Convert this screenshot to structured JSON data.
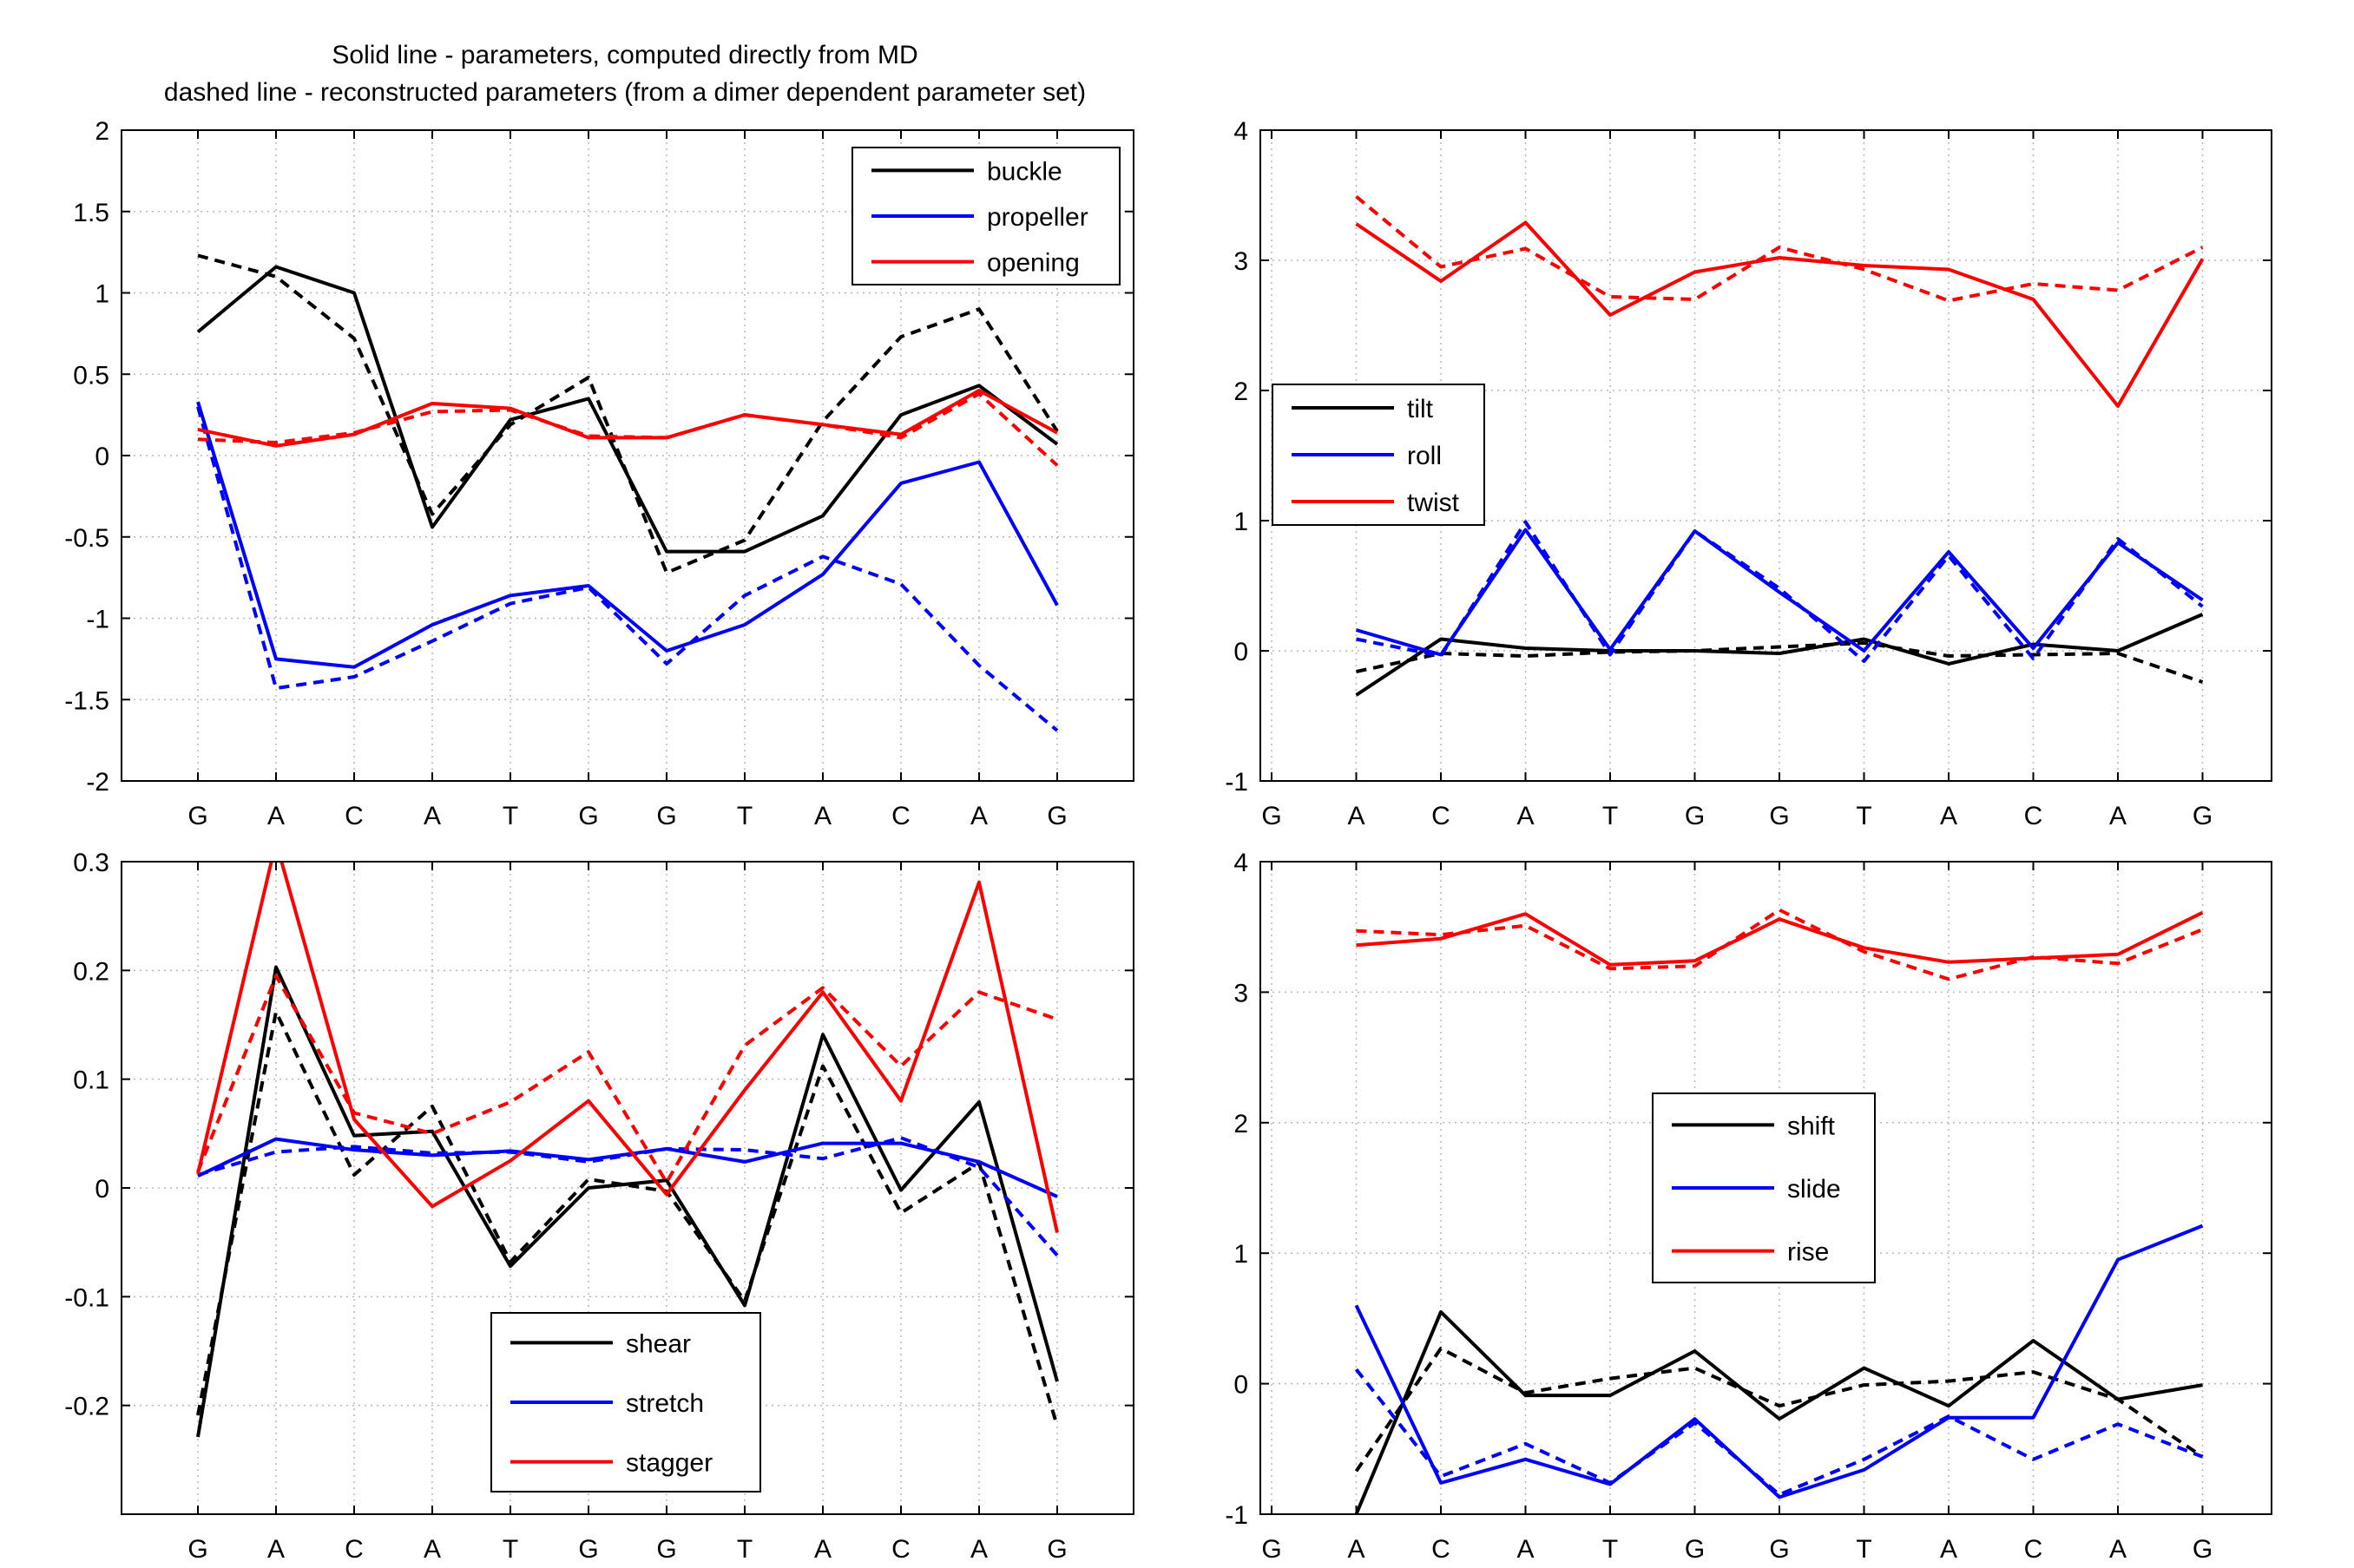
{
  "figure": {
    "title_line1": "Solid line - parameters, computed directly from MD",
    "title_line2": "dashed line - reconstructed parameters (from a dimer dependent parameter set)"
  },
  "colors": {
    "black": "#000000",
    "blue": "#0000ff",
    "red": "#ff0000"
  },
  "chart_data": [
    {
      "type": "line",
      "categories": [
        "G",
        "A",
        "C",
        "A",
        "T",
        "G",
        "G",
        "T",
        "A",
        "C",
        "A",
        "G"
      ],
      "ylim": [
        -2,
        2
      ],
      "yticks": [
        "-2",
        "-1.5",
        "-1",
        "-0.5",
        "0",
        "0.5",
        "1",
        "1.5",
        "2"
      ],
      "ytick_values": [
        -2,
        -1.5,
        -1,
        -0.5,
        0,
        0.5,
        1,
        1.5,
        2
      ],
      "grid": true,
      "legend_position": "top-right",
      "series": [
        {
          "name": "buckle",
          "color": "#000000",
          "solid": [
            0.76,
            1.16,
            1.0,
            -0.44,
            0.22,
            0.35,
            -0.59,
            -0.59,
            -0.37,
            0.25,
            0.43,
            0.07
          ],
          "dashed": [
            1.23,
            1.1,
            0.72,
            -0.36,
            0.19,
            0.48,
            -0.72,
            -0.52,
            0.21,
            0.73,
            0.9,
            0.15
          ]
        },
        {
          "name": "propeller",
          "color": "#0000ff",
          "solid": [
            0.33,
            -1.25,
            -1.3,
            -1.04,
            -0.86,
            -0.8,
            -1.2,
            -1.04,
            -0.73,
            -0.17,
            -0.04,
            -0.92
          ],
          "dashed": [
            0.3,
            -1.43,
            -1.36,
            -1.14,
            -0.91,
            -0.81,
            -1.28,
            -0.86,
            -0.62,
            -0.79,
            -1.29,
            -1.69
          ]
        },
        {
          "name": "opening",
          "color": "#ff0000",
          "solid": [
            0.16,
            0.06,
            0.13,
            0.32,
            0.29,
            0.11,
            0.11,
            0.25,
            0.19,
            0.13,
            0.4,
            0.14
          ],
          "dashed": [
            0.1,
            0.08,
            0.14,
            0.27,
            0.28,
            0.12,
            0.11,
            0.25,
            0.19,
            0.11,
            0.38,
            -0.06
          ]
        }
      ]
    },
    {
      "type": "line",
      "categories": [
        "G",
        "A",
        "C",
        "A",
        "T",
        "G",
        "G",
        "T",
        "A",
        "C",
        "A",
        "G"
      ],
      "ylim": [
        -1,
        4
      ],
      "yticks": [
        "-1",
        "0",
        "1",
        "2",
        "3",
        "4"
      ],
      "ytick_values": [
        -1,
        0,
        1,
        2,
        3,
        4
      ],
      "grid": true,
      "legend_position": "center-left",
      "series": [
        {
          "name": "tilt",
          "color": "#000000",
          "solid": [
            null,
            -0.34,
            0.09,
            0.02,
            0.0,
            0.0,
            -0.02,
            0.09,
            -0.1,
            0.05,
            0.0,
            0.28
          ],
          "dashed": [
            null,
            -0.16,
            -0.02,
            -0.04,
            -0.01,
            0.0,
            0.03,
            0.06,
            -0.04,
            -0.03,
            -0.02,
            -0.24
          ]
        },
        {
          "name": "roll",
          "color": "#0000ff",
          "solid": [
            null,
            0.16,
            -0.03,
            0.93,
            0.01,
            0.92,
            0.45,
            0.0,
            0.76,
            0.02,
            0.83,
            0.39
          ],
          "dashed": [
            null,
            0.09,
            -0.04,
            0.99,
            -0.03,
            0.92,
            0.48,
            -0.08,
            0.73,
            -0.06,
            0.86,
            0.34
          ]
        },
        {
          "name": "twist",
          "color": "#ff0000",
          "solid": [
            null,
            3.28,
            2.84,
            3.29,
            2.58,
            2.91,
            3.02,
            2.96,
            2.93,
            2.7,
            1.88,
            3.01
          ],
          "dashed": [
            null,
            3.49,
            2.95,
            3.09,
            2.72,
            2.7,
            3.1,
            2.93,
            2.69,
            2.82,
            2.77,
            3.1
          ]
        }
      ]
    },
    {
      "type": "line",
      "categories": [
        "G",
        "A",
        "C",
        "A",
        "T",
        "G",
        "G",
        "T",
        "A",
        "C",
        "A",
        "G"
      ],
      "ylim": [
        -0.3,
        0.3
      ],
      "yticks": [
        "-0.2",
        "-0.1",
        "0",
        "0.1",
        "0.2",
        "0.3"
      ],
      "ytick_values": [
        -0.2,
        -0.1,
        0,
        0.1,
        0.2,
        0.3
      ],
      "grid": true,
      "legend_position": "bottom-center",
      "series": [
        {
          "name": "shear",
          "color": "#000000",
          "solid": [
            -0.229,
            0.203,
            0.048,
            0.052,
            -0.072,
            0.0,
            0.007,
            -0.108,
            0.141,
            -0.002,
            0.079,
            -0.178
          ],
          "dashed": [
            -0.209,
            0.162,
            0.012,
            0.075,
            -0.068,
            0.008,
            -0.003,
            -0.104,
            0.112,
            -0.023,
            0.023,
            -0.219
          ]
        },
        {
          "name": "stretch",
          "color": "#0000ff",
          "solid": [
            0.011,
            0.045,
            0.035,
            0.03,
            0.034,
            0.026,
            0.036,
            0.024,
            0.041,
            0.041,
            0.024,
            -0.008
          ],
          "dashed": [
            0.012,
            0.033,
            0.038,
            0.032,
            0.033,
            0.024,
            0.036,
            0.035,
            0.027,
            0.046,
            0.019,
            -0.062
          ]
        },
        {
          "name": "stagger",
          "color": "#ff0000",
          "solid": [
            0.013,
            0.318,
            0.063,
            -0.017,
            0.025,
            0.08,
            -0.006,
            0.09,
            0.18,
            0.08,
            0.281,
            -0.041
          ],
          "dashed": [
            0.015,
            0.195,
            0.069,
            0.05,
            0.079,
            0.125,
            0.005,
            0.131,
            0.184,
            0.112,
            0.18,
            0.155
          ]
        }
      ]
    },
    {
      "type": "line",
      "categories": [
        "G",
        "A",
        "C",
        "A",
        "T",
        "G",
        "G",
        "T",
        "A",
        "C",
        "A",
        "G"
      ],
      "ylim": [
        -1,
        4
      ],
      "yticks": [
        "-1",
        "0",
        "1",
        "2",
        "3",
        "4"
      ],
      "ytick_values": [
        -1,
        0,
        1,
        2,
        3,
        4
      ],
      "grid": true,
      "legend_position": "center-left",
      "series": [
        {
          "name": "shift",
          "color": "#000000",
          "solid": [
            null,
            -1.0,
            0.55,
            -0.09,
            -0.09,
            0.25,
            -0.27,
            0.12,
            -0.17,
            0.33,
            -0.12,
            -0.01
          ],
          "dashed": [
            null,
            -0.67,
            0.27,
            -0.07,
            0.04,
            0.12,
            -0.17,
            -0.01,
            0.02,
            0.09,
            -0.12,
            -0.56
          ]
        },
        {
          "name": "slide",
          "color": "#0000ff",
          "solid": [
            null,
            0.6,
            -0.76,
            -0.58,
            -0.77,
            -0.27,
            -0.87,
            -0.66,
            -0.26,
            -0.26,
            0.95,
            1.21
          ],
          "dashed": [
            null,
            0.11,
            -0.71,
            -0.46,
            -0.76,
            -0.3,
            -0.85,
            -0.58,
            -0.25,
            -0.58,
            -0.31,
            -0.56
          ]
        },
        {
          "name": "rise",
          "color": "#ff0000",
          "solid": [
            null,
            3.36,
            3.41,
            3.6,
            3.21,
            3.24,
            3.56,
            3.34,
            3.23,
            3.26,
            3.29,
            3.61
          ],
          "dashed": [
            null,
            3.47,
            3.44,
            3.51,
            3.18,
            3.2,
            3.63,
            3.31,
            3.1,
            3.27,
            3.22,
            3.48
          ]
        }
      ]
    }
  ]
}
